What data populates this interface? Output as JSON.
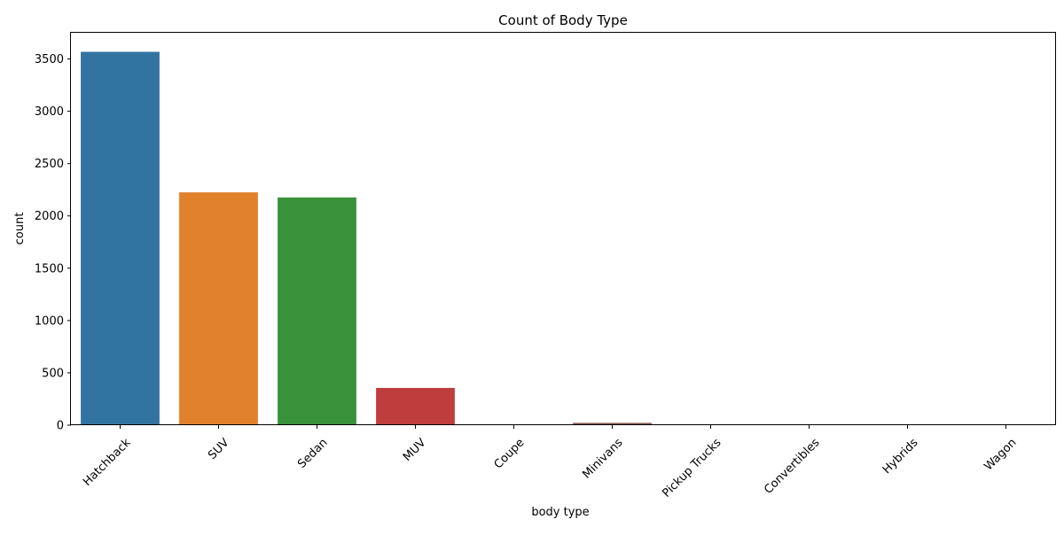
{
  "chart_data": {
    "type": "bar",
    "title": "Count of Body Type",
    "xlabel": "body type",
    "ylabel": "count",
    "categories": [
      "Hatchback",
      "SUV",
      "Sedan",
      "MUV",
      "Coupe",
      "Minivans",
      "Pickup Trucks",
      "Convertibles",
      "Hybrids",
      "Wagon"
    ],
    "values": [
      3568,
      2225,
      2176,
      356,
      8,
      22,
      4,
      8,
      1,
      1
    ],
    "colors": [
      "#3274a1",
      "#e1812c",
      "#3a923a",
      "#c03d3e",
      "#9372b2",
      "#845b53",
      "#d684bd",
      "#7f7f7f",
      "#a9aa35",
      "#2eb3c5"
    ],
    "ylim": [
      0,
      3750
    ],
    "yticks": [
      0,
      500,
      1000,
      1500,
      2000,
      2500,
      3000,
      3500
    ],
    "ytick_labels": [
      "0",
      "500",
      "1000",
      "1500",
      "2000",
      "2500",
      "3000",
      "3500"
    ],
    "xtick_rotation": 45,
    "grid": false,
    "legend": "none"
  }
}
